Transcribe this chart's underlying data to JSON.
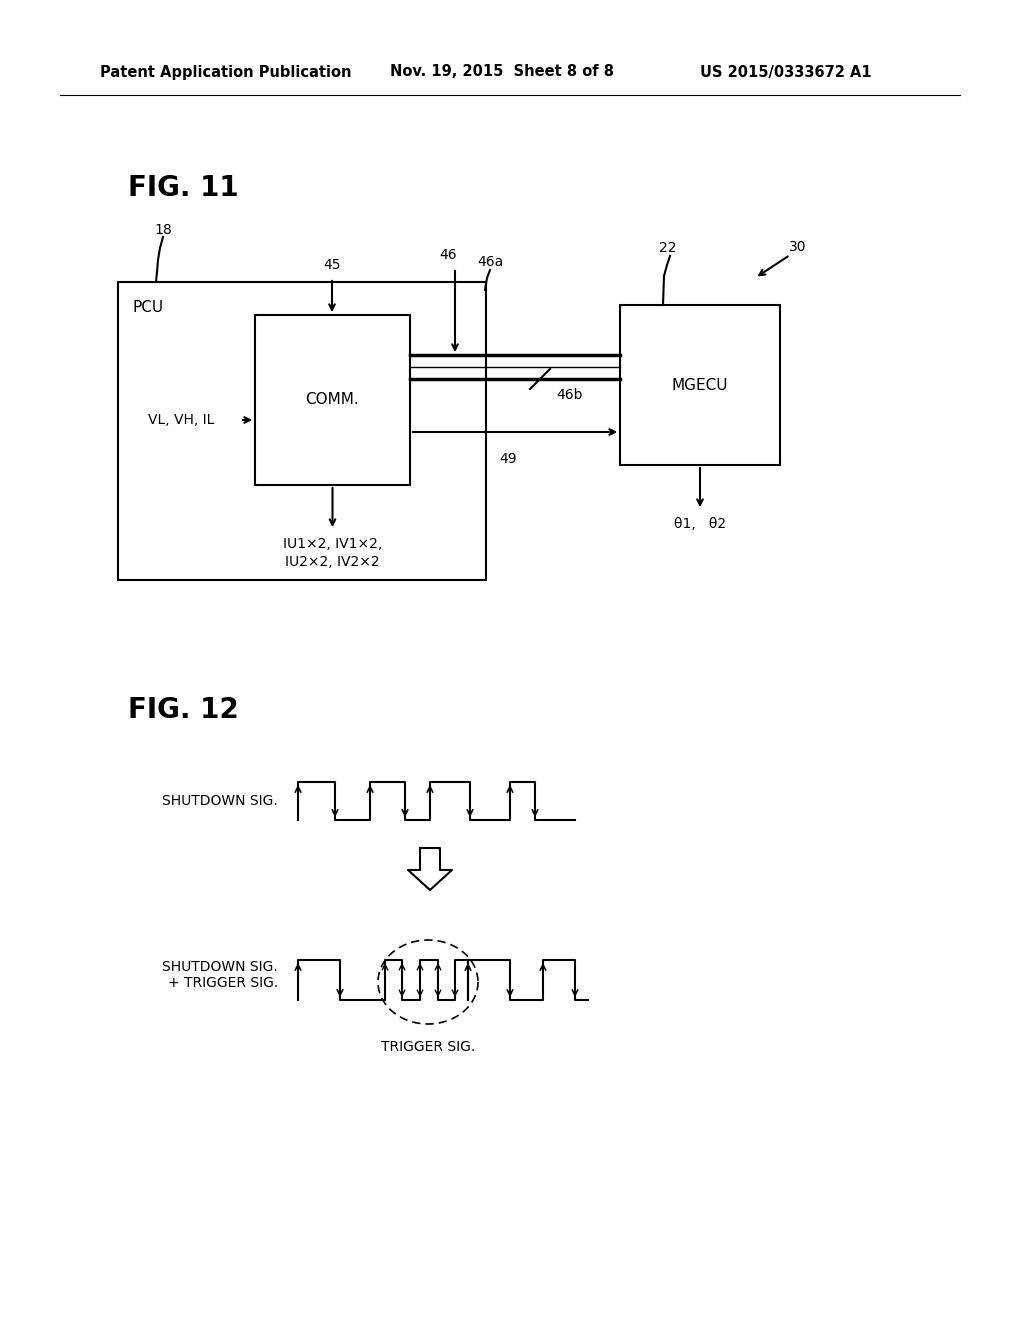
{
  "bg_color": "#ffffff",
  "header_left": "Patent Application Publication",
  "header_mid": "Nov. 19, 2015  Sheet 8 of 8",
  "header_right": "US 2015/0333672 A1",
  "fig11_label": "FIG. 11",
  "fig12_label": "FIG. 12",
  "pcu_label": "PCU",
  "comm_label": "COMM.",
  "mgecu_label": "MGECU",
  "label_18": "18",
  "label_22": "22",
  "label_30": "30",
  "label_45": "45",
  "label_46": "46",
  "label_46a": "46a",
  "label_46b": "46b",
  "label_49": "49",
  "vl_vh_il": "VL, VH, IL",
  "iu1_iv1": "IU1×2, IV1×2,",
  "iu2_iv2": "IU2×2, IV2×2",
  "theta_label": "θ1,   θ2",
  "shutdown_sig_label": "SHUTDOWN SIG.",
  "shutdown_trigger_label": "SHUTDOWN SIG.\n+ TRIGGER SIG.",
  "trigger_sig_label": "TRIGGER SIG."
}
